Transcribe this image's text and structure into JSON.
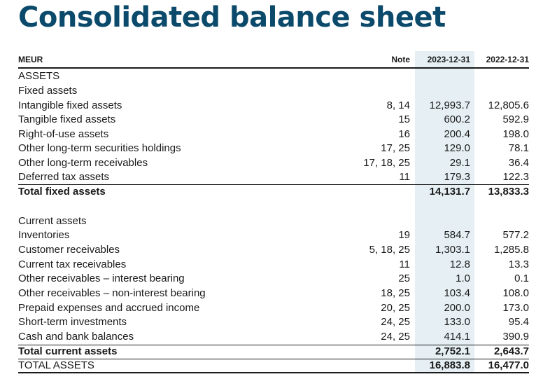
{
  "title": "Consolidated balance sheet",
  "header": {
    "label": "MEUR",
    "note": "Note",
    "col1": "2023-12-31",
    "col2": "2022-12-31"
  },
  "colors": {
    "title": "#0b4a6b",
    "highlight": "#e6f0f4"
  },
  "rows": [
    {
      "label": "ASSETS",
      "note": "",
      "v1": "",
      "v2": ""
    },
    {
      "label": "Fixed assets",
      "note": "",
      "v1": "",
      "v2": ""
    },
    {
      "label": "Intangible fixed assets",
      "note": "8, 14",
      "v1": "12,993.7",
      "v2": "12,805.6"
    },
    {
      "label": "Tangible fixed assets",
      "note": "15",
      "v1": "600.2",
      "v2": "592.9"
    },
    {
      "label": "Right-of-use assets",
      "note": "16",
      "v1": "200.4",
      "v2": "198.0"
    },
    {
      "label": "Other long-term securities holdings",
      "note": "17, 25",
      "v1": "129.0",
      "v2": "78.1"
    },
    {
      "label": "Other long-term receivables",
      "note": "17, 18, 25",
      "v1": "29.1",
      "v2": "36.4"
    },
    {
      "label": "Deferred tax assets",
      "note": "11",
      "v1": "179.3",
      "v2": "122.3"
    },
    {
      "label": "Total fixed assets",
      "note": "",
      "v1": "14,131.7",
      "v2": "13,833.3"
    },
    {
      "label": "Current assets",
      "note": "",
      "v1": "",
      "v2": ""
    },
    {
      "label": "Inventories",
      "note": "19",
      "v1": "584.7",
      "v2": "577.2"
    },
    {
      "label": "Customer receivables",
      "note": "5, 18, 25",
      "v1": "1,303.1",
      "v2": "1,285.8"
    },
    {
      "label": "Current tax receivables",
      "note": "11",
      "v1": "12.8",
      "v2": "13.3"
    },
    {
      "label": "Other receivables – interest bearing",
      "note": "25",
      "v1": "1.0",
      "v2": "0.1"
    },
    {
      "label": "Other receivables – non-interest bearing",
      "note": "18, 25",
      "v1": "103.4",
      "v2": "108.0"
    },
    {
      "label": "Prepaid expenses and accrued income",
      "note": "20, 25",
      "v1": "200.0",
      "v2": "173.0"
    },
    {
      "label": "Short-term investments",
      "note": "24, 25",
      "v1": "133.0",
      "v2": "95.4"
    },
    {
      "label": "Cash and bank balances",
      "note": "24, 25",
      "v1": "414.1",
      "v2": "390.9"
    },
    {
      "label": "Total current assets",
      "note": "",
      "v1": "2,752.1",
      "v2": "2,643.7"
    },
    {
      "label": "TOTAL ASSETS",
      "note": "",
      "v1": "16,883.8",
      "v2": "16,477.0"
    }
  ]
}
